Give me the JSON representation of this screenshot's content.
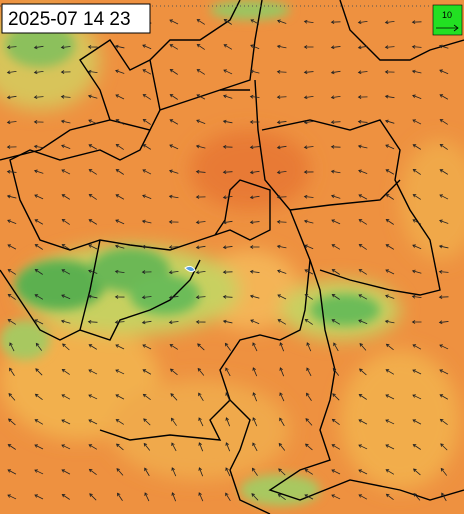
{
  "timestamp": "2025-07 14 23",
  "legend": {
    "label": "10"
  }
}
